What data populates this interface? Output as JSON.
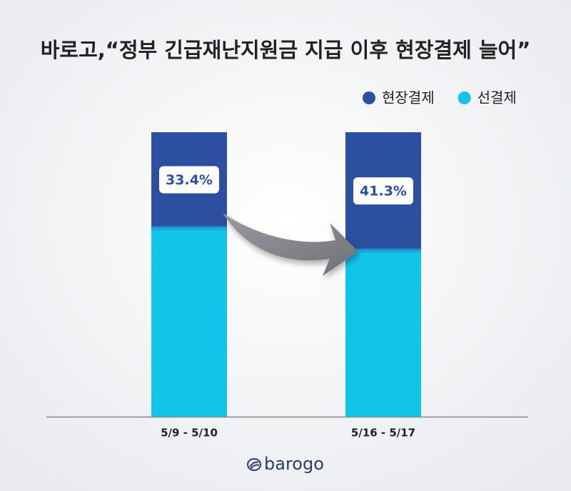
{
  "chart_data": {
    "type": "stacked_bar",
    "title": "바로고,“정부 긴급재난지원금 지급 이후 현장결제 늘어”",
    "categories": [
      "5/9 - 5/10",
      "5/16 - 5/17"
    ],
    "series": [
      {
        "name": "선결제",
        "color": "#12c5e8",
        "values": [
          66.6,
          58.7
        ]
      },
      {
        "name": "현장결제",
        "color": "#2d4fa0",
        "values": [
          33.4,
          41.3
        ],
        "value_labels": [
          "33.4%",
          "41.3%"
        ]
      }
    ],
    "legend": "top-right",
    "source": "barogo"
  }
}
